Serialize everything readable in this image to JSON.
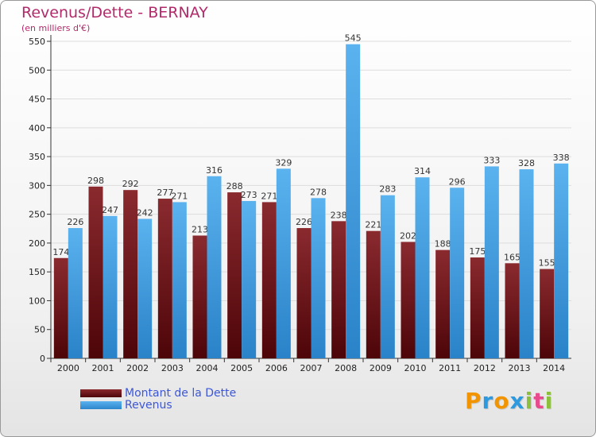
{
  "chart_data": {
    "type": "bar",
    "title": "Revenus/Dette - BERNAY",
    "subtitle": "(en milliers d'€)",
    "categories": [
      "2000",
      "2001",
      "2002",
      "2003",
      "2004",
      "2005",
      "2006",
      "2007",
      "2008",
      "2009",
      "2010",
      "2011",
      "2012",
      "2013",
      "2014"
    ],
    "series": [
      {
        "name": "Montant de la Dette",
        "color": "#6e1a1f",
        "values": [
          174,
          298,
          292,
          277,
          213,
          288,
          271,
          226,
          238,
          221,
          202,
          188,
          175,
          165,
          155
        ]
      },
      {
        "name": "Revenus",
        "color": "#46a0e4",
        "values": [
          226,
          247,
          242,
          271,
          316,
          273,
          329,
          278,
          545,
          283,
          314,
          296,
          333,
          328,
          338
        ]
      }
    ],
    "ylim": [
      0,
      550
    ],
    "yticks": [
      0,
      50,
      100,
      150,
      200,
      250,
      300,
      350,
      400,
      450,
      500,
      550
    ],
    "grid": true,
    "legend": "bottom-left"
  },
  "legend": {
    "debt_label": "Montant de la Dette",
    "revenue_label": "Revenus"
  },
  "brand": {
    "logo_letters": [
      "P",
      "r",
      "o",
      "x",
      "i",
      "t",
      "i"
    ],
    "logo_colors": [
      "#f29400",
      "#2d9adf",
      "#f29400",
      "#2d9adf",
      "#8bbf3c",
      "#e84a8d",
      "#8bbf3c"
    ]
  }
}
